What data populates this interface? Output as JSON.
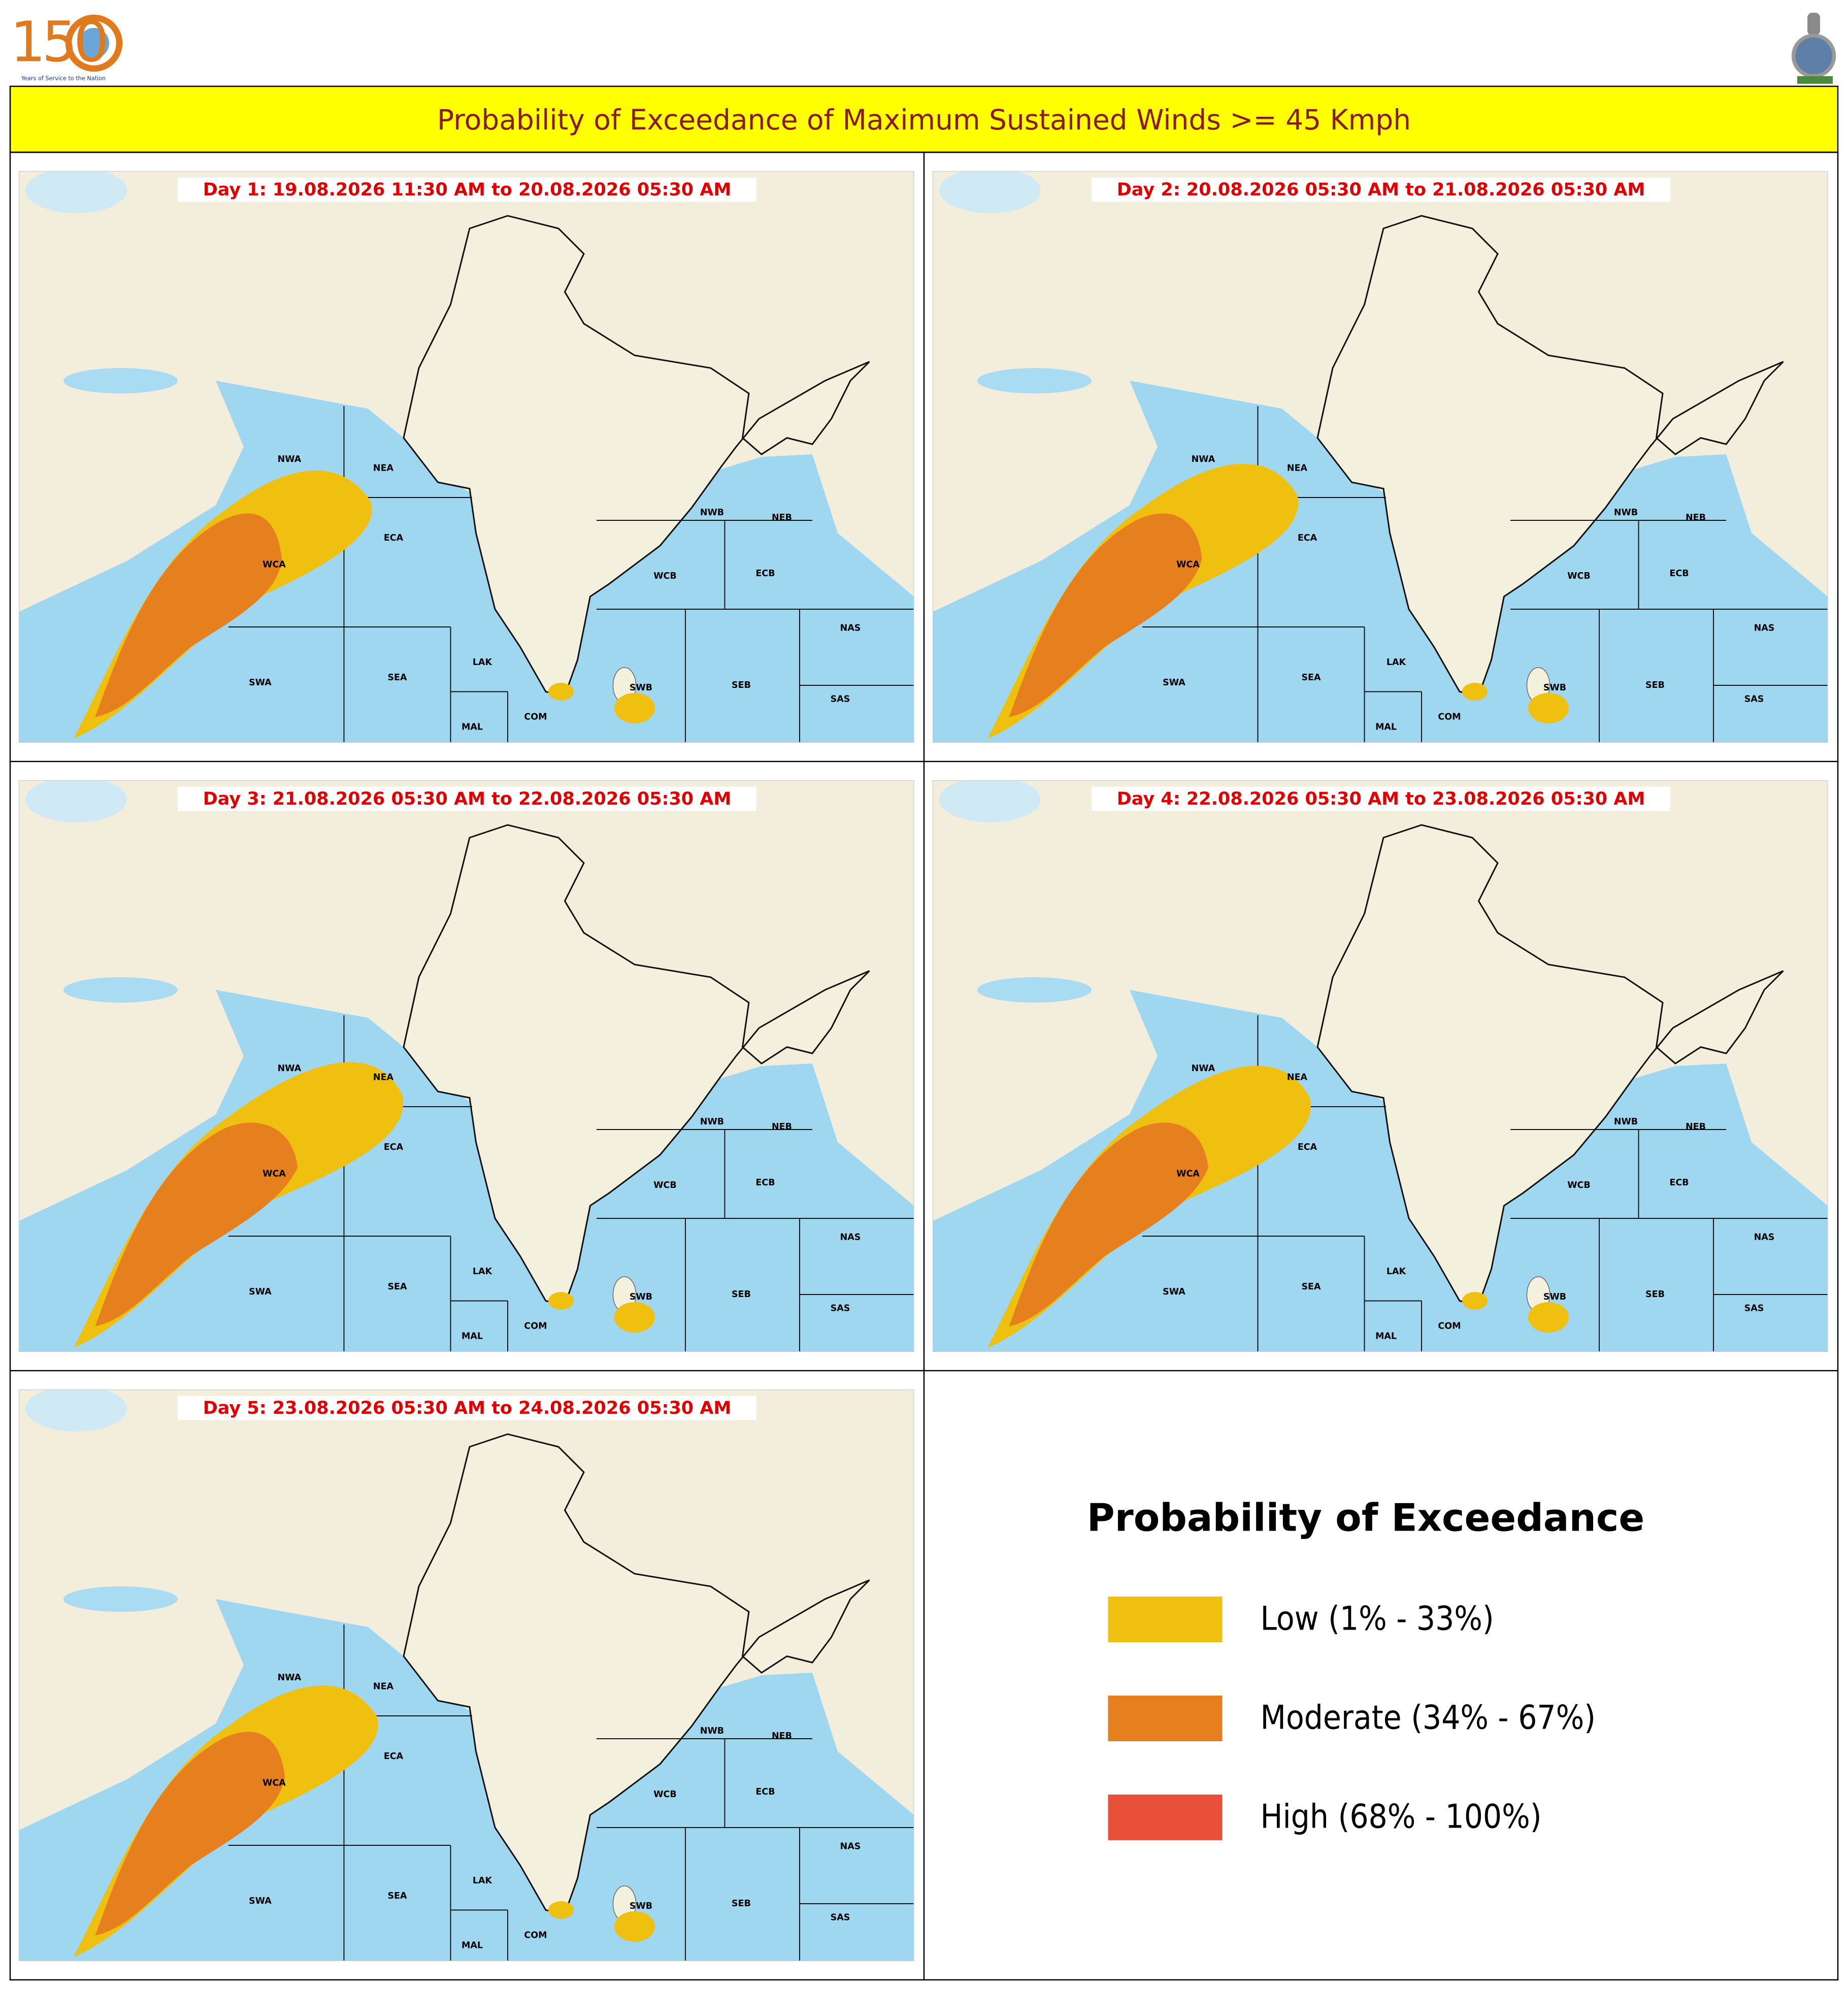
{
  "header": {
    "logo_number": "150",
    "logo_tagline": "Years of Service to the Nation"
  },
  "title": "Probability of Exceedance of Maximum Sustained Winds >= 45 Kmph",
  "maps": [
    {
      "label": "Day 1: 19.08.2026 11:30 AM to 20.08.2026 05:30 AM"
    },
    {
      "label": "Day 2: 20.08.2026 05:30 AM to 21.08.2026 05:30 AM"
    },
    {
      "label": "Day 3: 21.08.2026 05:30 AM to 22.08.2026 05:30 AM"
    },
    {
      "label": "Day 4: 22.08.2026 05:30 AM to 23.08.2026 05:30 AM"
    },
    {
      "label": "Day 5: 23.08.2026 05:30 AM to 24.08.2026 05:30 AM"
    }
  ],
  "regions": [
    "NWA",
    "NEA",
    "ECA",
    "WCA",
    "SWA",
    "SEA",
    "LAK",
    "MAL",
    "COM",
    "NWB",
    "NEB",
    "WCB",
    "ECB",
    "NAS",
    "SAS",
    "SEB",
    "SWB"
  ],
  "legend": {
    "title": "Probability of Exceedance",
    "items": [
      {
        "label": "Low (1% - 33%)",
        "color": "#f0c010"
      },
      {
        "label": "Moderate (34% - 67%)",
        "color": "#e6801e"
      },
      {
        "label": "High (68% - 100%)",
        "color": "#e8503a"
      }
    ]
  }
}
